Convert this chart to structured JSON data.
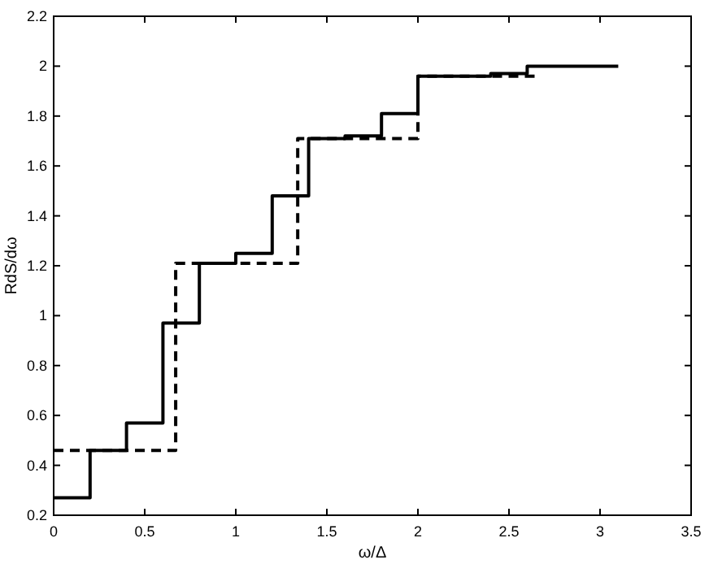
{
  "chart_data": {
    "type": "step",
    "xlabel": "ω/Δ",
    "ylabel": "RdS/dω",
    "xlim": [
      0,
      3.5
    ],
    "ylim": [
      0.2,
      2.2
    ],
    "xticks": [
      0,
      0.5,
      1,
      1.5,
      2,
      2.5,
      3,
      3.5
    ],
    "yticks": [
      0.2,
      0.4,
      0.6,
      0.8,
      1,
      1.2,
      1.4,
      1.6,
      1.8,
      2,
      2.2
    ],
    "grid": false,
    "series": [
      {
        "color": "#000000",
        "line_style": "solid",
        "x": [
          0,
          0.2,
          0.4,
          0.6,
          0.8,
          1.0,
          1.2,
          1.4,
          1.6,
          1.8,
          2.0,
          2.4,
          2.6,
          3.1
        ],
        "values": [
          0.27,
          0.46,
          0.57,
          0.97,
          1.21,
          1.25,
          1.48,
          1.71,
          1.72,
          1.81,
          1.96,
          1.97,
          2.0,
          2.0
        ]
      },
      {
        "color": "#000000",
        "line_style": "dashed",
        "x": [
          0,
          0.67,
          1.34,
          2.0,
          2.67
        ],
        "values": [
          0.46,
          1.21,
          1.71,
          1.96,
          1.96
        ]
      }
    ]
  }
}
